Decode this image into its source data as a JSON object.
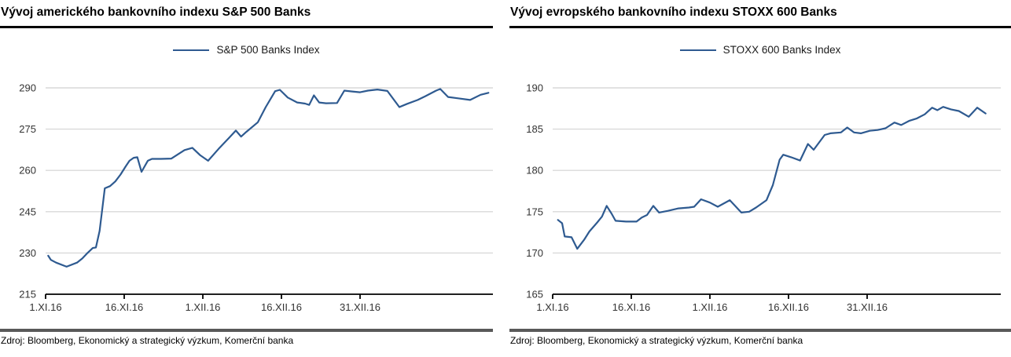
{
  "colors": {
    "line": "#2e5a90",
    "gridline": "#d9d9d9",
    "axis": "#000000",
    "title_rule": "#000000",
    "source_rule": "#595959",
    "label_text": "#333333"
  },
  "chart_data": [
    {
      "type": "line",
      "title": "Vývoj amerického bankovního indexu S&P 500 Banks",
      "legend": "S&P 500 Banks Index",
      "legend_position": "top-center",
      "source": "Zdroj: Bloomberg, Ekonomický a strategický výzkum, Komerční banka",
      "grid": "horizontal",
      "line_color": "#2e5a90",
      "ylim": [
        215,
        290
      ],
      "yticks": [
        215,
        230,
        245,
        260,
        275,
        290
      ],
      "xlim": [
        0,
        85.5
      ],
      "x_unit": "calendar days since 1.XI.16",
      "xticks": [
        {
          "x": 0,
          "label": "1.XI.16"
        },
        {
          "x": 15,
          "label": "16.XI.16"
        },
        {
          "x": 30,
          "label": "1.XII.16"
        },
        {
          "x": 45,
          "label": "16.XII.16"
        },
        {
          "x": 60,
          "label": "31.XII.16"
        }
      ],
      "points": {
        "x": [
          0.5,
          1,
          2,
          4,
          6,
          7,
          8,
          9,
          9.6,
          10.3,
          11.3,
          12.3,
          13.3,
          14.3,
          15.3,
          16,
          16.8,
          17.5,
          18.3,
          19.5,
          20.3,
          22,
          24,
          26.5,
          28,
          29.5,
          31,
          33,
          35,
          36.3,
          37.3,
          38.3,
          40.5,
          42,
          43.8,
          44.7,
          46.2,
          48,
          49.5,
          50.3,
          51.2,
          52.2,
          53.5,
          55.6,
          57,
          58.5,
          60,
          61.5,
          63.3,
          65.2,
          67.5,
          69,
          71,
          72.5,
          74.5,
          75.3,
          76.8,
          78.7,
          81,
          83,
          84.5
        ],
        "y": [
          229,
          227.5,
          226.5,
          225,
          226.5,
          228,
          230,
          231.8,
          232,
          238,
          253.5,
          254.3,
          256,
          258.5,
          261.5,
          263.5,
          264.6,
          264.8,
          259.5,
          263.5,
          264.2,
          264.2,
          264.3,
          267.4,
          268.2,
          265.5,
          263.5,
          267.8,
          271.8,
          274.5,
          272.3,
          274,
          277.5,
          283,
          288.8,
          289.3,
          286.5,
          284.7,
          284.3,
          283.8,
          287.3,
          284.7,
          284.4,
          284.5,
          289,
          288.7,
          288.4,
          289,
          289.4,
          288.9,
          283,
          284.2,
          285.6,
          287,
          289,
          289.6,
          286.7,
          286.2,
          285.6,
          287.5,
          288.2
        ]
      }
    },
    {
      "type": "line",
      "title": "Vývoj evropského bankovního indexu STOXX 600 Banks",
      "legend": "STOXX 600 Banks Index",
      "legend_position": "top-center",
      "source": "Zdroj: Bloomberg, Ekonomický a strategický výzkum, Komerční banka",
      "grid": "horizontal",
      "line_color": "#2e5a90",
      "ylim": [
        165,
        190
      ],
      "yticks": [
        165,
        170,
        175,
        180,
        185,
        190
      ],
      "xlim": [
        0,
        85.5
      ],
      "x_unit": "calendar days since 1.XI.16",
      "xticks": [
        {
          "x": 0,
          "label": "1.XI.16"
        },
        {
          "x": 15,
          "label": "16.XI.16"
        },
        {
          "x": 30,
          "label": "1.XII.16"
        },
        {
          "x": 45,
          "label": "16.XII.16"
        },
        {
          "x": 60,
          "label": "31.XII.16"
        }
      ],
      "points": {
        "x": [
          1,
          1.8,
          2.3,
          3.6,
          4.7,
          6,
          7,
          8.5,
          9.4,
          10.3,
          11.2,
          12,
          14,
          16,
          17,
          18,
          19.2,
          20.3,
          22,
          24,
          26,
          27,
          28.3,
          30,
          31.5,
          33.8,
          36,
          37.5,
          38.8,
          40.8,
          42,
          43.3,
          44,
          45.5,
          47.2,
          48.7,
          49.8,
          51.9,
          53,
          55,
          56.2,
          57.5,
          58.8,
          60.5,
          62,
          63.5,
          65.2,
          66.5,
          68,
          69.5,
          71,
          72.4,
          73.4,
          74.5,
          76,
          77.5,
          79.4,
          81,
          82.6
        ],
        "y": [
          174.0,
          173.6,
          172.0,
          171.9,
          170.5,
          171.6,
          172.6,
          173.7,
          174.4,
          175.7,
          174.8,
          173.9,
          173.8,
          173.8,
          174.3,
          174.6,
          175.7,
          174.9,
          175.1,
          175.4,
          175.5,
          175.6,
          176.5,
          176.1,
          175.6,
          176.4,
          174.9,
          175.0,
          175.5,
          176.4,
          178.2,
          181.3,
          181.9,
          181.6,
          181.2,
          183.2,
          182.5,
          184.3,
          184.5,
          184.6,
          185.2,
          184.6,
          184.5,
          184.8,
          184.9,
          185.1,
          185.8,
          185.5,
          186.0,
          186.3,
          186.8,
          187.6,
          187.3,
          187.7,
          187.4,
          187.2,
          186.5,
          187.6,
          186.9
        ]
      }
    }
  ]
}
